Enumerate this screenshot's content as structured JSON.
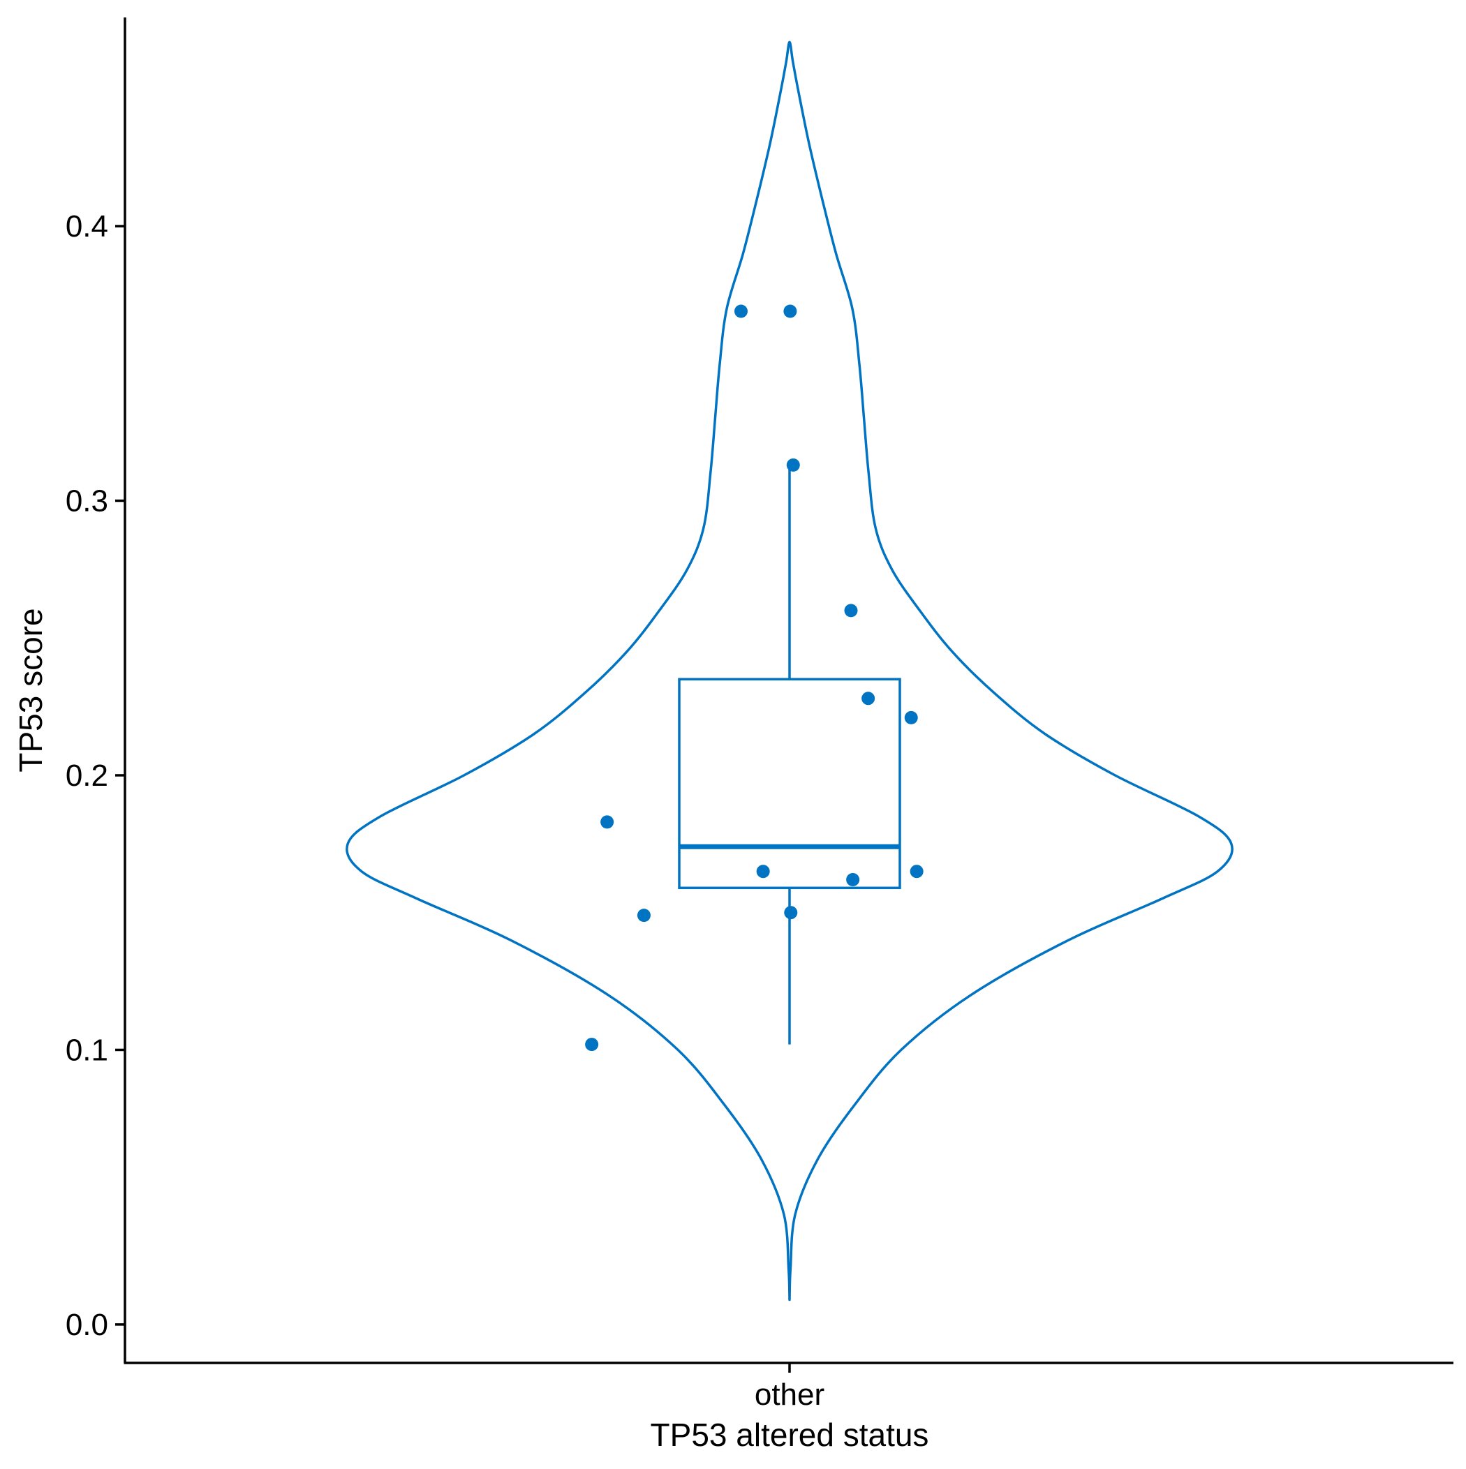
{
  "chart_data": {
    "type": "violin",
    "overlay": [
      "boxplot",
      "jitter-points"
    ],
    "title": "",
    "xlabel": "TP53 altered status",
    "ylabel": "TP53 score",
    "categories": [
      "other"
    ],
    "ylim": [
      -0.014,
      0.476
    ],
    "yticks": [
      0.0,
      0.1,
      0.2,
      0.3,
      0.4
    ],
    "ytick_labels": [
      "0.0",
      "0.1",
      "0.2",
      "0.3",
      "0.4"
    ],
    "grid": false,
    "legend": "none",
    "color": "#0073C2",
    "violin": {
      "y_min": 0.009,
      "y_max": 0.467,
      "half_width_profile": [
        [
          0.009,
          0.0
        ],
        [
          0.02,
          0.002
        ],
        [
          0.04,
          0.012
        ],
        [
          0.06,
          0.06
        ],
        [
          0.08,
          0.14
        ],
        [
          0.1,
          0.24
        ],
        [
          0.12,
          0.39
        ],
        [
          0.14,
          0.6
        ],
        [
          0.155,
          0.8
        ],
        [
          0.165,
          0.92
        ],
        [
          0.175,
          0.95
        ],
        [
          0.185,
          0.88
        ],
        [
          0.2,
          0.7
        ],
        [
          0.215,
          0.55
        ],
        [
          0.23,
          0.44
        ],
        [
          0.245,
          0.35
        ],
        [
          0.26,
          0.28
        ],
        [
          0.275,
          0.22
        ],
        [
          0.29,
          0.185
        ],
        [
          0.31,
          0.17
        ],
        [
          0.33,
          0.16
        ],
        [
          0.35,
          0.15
        ],
        [
          0.37,
          0.135
        ],
        [
          0.39,
          0.1
        ],
        [
          0.41,
          0.07
        ],
        [
          0.43,
          0.042
        ],
        [
          0.45,
          0.018
        ],
        [
          0.46,
          0.007
        ],
        [
          0.467,
          0.0
        ]
      ]
    },
    "box": {
      "min": 0.102,
      "q1": 0.159,
      "median": 0.174,
      "q3": 0.235,
      "max": 0.314
    },
    "points": [
      {
        "x": -0.079,
        "y": 0.369
      },
      {
        "x": 0.001,
        "y": 0.369
      },
      {
        "x": 0.006,
        "y": 0.313
      },
      {
        "x": 0.1,
        "y": 0.26
      },
      {
        "x": 0.128,
        "y": 0.228
      },
      {
        "x": 0.198,
        "y": 0.221
      },
      {
        "x": -0.297,
        "y": 0.183
      },
      {
        "x": -0.043,
        "y": 0.165
      },
      {
        "x": 0.207,
        "y": 0.165
      },
      {
        "x": 0.103,
        "y": 0.162
      },
      {
        "x": -0.237,
        "y": 0.149
      },
      {
        "x": 0.002,
        "y": 0.15
      },
      {
        "x": -0.322,
        "y": 0.102
      }
    ]
  }
}
